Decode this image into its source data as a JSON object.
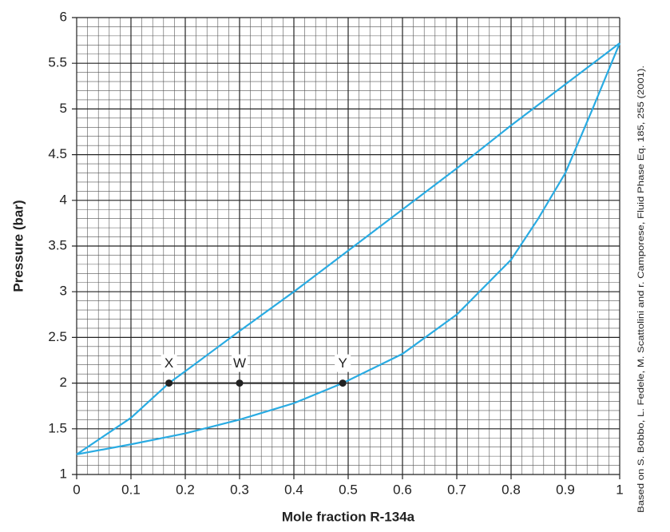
{
  "chart_data": {
    "type": "line",
    "xlabel": "Mole fraction R-134a",
    "ylabel": "Pressure (bar)",
    "source": "Based on S. Bobbo, L. Fedele, M. Scattolini and r. Camporese,  Fluid Phase Eq. 185, 255 (2001).",
    "xlim": [
      0,
      1
    ],
    "ylim": [
      1,
      6
    ],
    "xticks": [
      0,
      0.1,
      0.2,
      0.3,
      0.4,
      0.5,
      0.6,
      0.7,
      0.8,
      0.9,
      1
    ],
    "yticks": [
      1,
      1.5,
      2,
      2.5,
      3,
      3.5,
      4,
      4.5,
      5,
      5.5,
      6
    ],
    "grid": true,
    "series": [
      {
        "color": "#29abe2",
        "x": [
          0,
          0.1,
          0.17,
          0.2,
          0.3,
          0.4,
          0.5,
          0.6,
          0.7,
          0.8,
          0.9,
          1
        ],
        "values": [
          1.22,
          1.62,
          2.0,
          2.13,
          2.57,
          3.0,
          3.45,
          3.9,
          4.35,
          4.82,
          5.27,
          5.72
        ]
      },
      {
        "color": "#29abe2",
        "x": [
          0,
          0.1,
          0.2,
          0.3,
          0.4,
          0.49,
          0.6,
          0.7,
          0.8,
          0.85,
          0.9,
          0.95,
          1
        ],
        "values": [
          1.22,
          1.33,
          1.45,
          1.6,
          1.78,
          2.0,
          2.32,
          2.75,
          3.35,
          3.8,
          4.3,
          5.0,
          5.72
        ]
      }
    ],
    "points": [
      {
        "label": "X",
        "x": 0.17,
        "y": 2
      },
      {
        "label": "W",
        "x": 0.3,
        "y": 2
      },
      {
        "label": "Y",
        "x": 0.49,
        "y": 2
      }
    ],
    "point_color": "#222222"
  }
}
